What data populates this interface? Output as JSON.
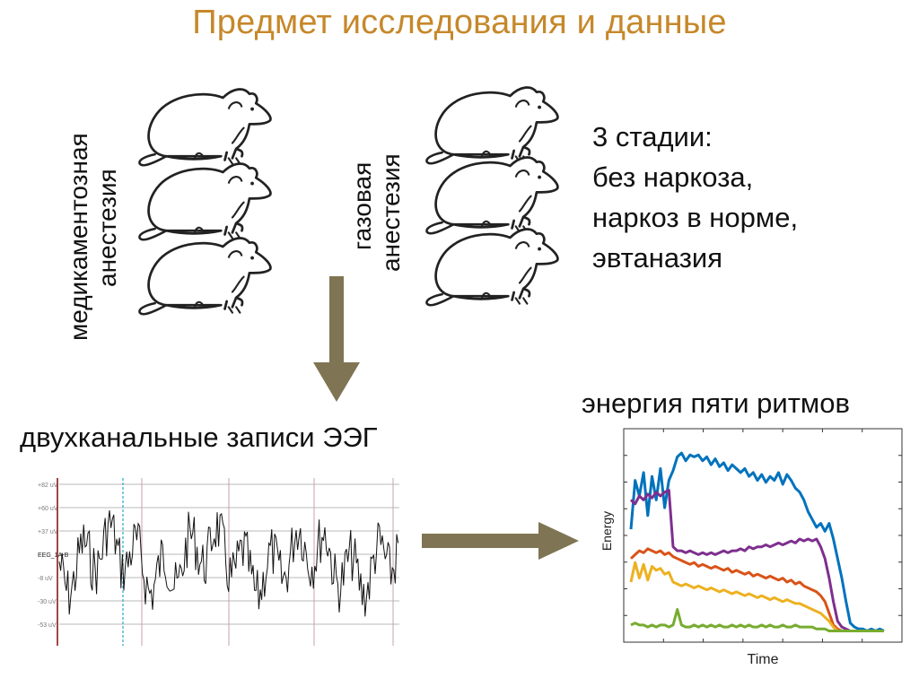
{
  "slide": {
    "title": "Предмет исследования и данные",
    "group_drug": {
      "line1": "медикаментозная",
      "line2": "анестезия"
    },
    "group_gas": {
      "line1": "газовая",
      "line2": "анестезия"
    },
    "stages": {
      "line1": "3 стадии:",
      "line2": "без наркоза,",
      "line3": "наркоз в норме,",
      "line4": "эвтаназия"
    },
    "eeg_label": "двухканальные записи ЭЭГ",
    "energy_label": "энергия пяти ритмов",
    "arrow_color": "#7f7453",
    "title_color": "#c6882a"
  },
  "eeg": {
    "channel": "EEG_1A-B",
    "y_ticks": [
      "+82 uV",
      "+60 uV",
      "+37 uV",
      "-8 uV",
      "-30 uV",
      "-53 uV"
    ]
  },
  "chart_data": {
    "type": "line",
    "title": "",
    "xlabel": "Time",
    "ylabel": "Energy",
    "legend": "none",
    "colors": [
      "#0072bd",
      "#7e2f8e",
      "#d95319",
      "#edb120",
      "#77ac30"
    ],
    "x": [
      0,
      1,
      2,
      3,
      4,
      5,
      6,
      7,
      8,
      9,
      10,
      11,
      12,
      13,
      14,
      15,
      16,
      17,
      18,
      19,
      20,
      21,
      22,
      23,
      24,
      25,
      26,
      27,
      28,
      29,
      30,
      31,
      32,
      33,
      34,
      35,
      36,
      37,
      38,
      39,
      40,
      41,
      42,
      43,
      44,
      45,
      46,
      47,
      48,
      49,
      50,
      51,
      52,
      53,
      54,
      55,
      56,
      57,
      58,
      59,
      60
    ],
    "series": [
      {
        "values": [
          0.55,
          0.8,
          0.72,
          0.84,
          0.62,
          0.82,
          0.7,
          0.86,
          0.66,
          0.8,
          0.85,
          0.92,
          0.94,
          0.9,
          0.93,
          0.92,
          0.93,
          0.9,
          0.92,
          0.88,
          0.91,
          0.87,
          0.89,
          0.85,
          0.88,
          0.86,
          0.84,
          0.86,
          0.82,
          0.84,
          0.8,
          0.83,
          0.79,
          0.82,
          0.8,
          0.84,
          0.78,
          0.83,
          0.8,
          0.76,
          0.74,
          0.7,
          0.64,
          0.6,
          0.56,
          0.58,
          0.54,
          0.58,
          0.5,
          0.4,
          0.3,
          0.18,
          0.07,
          0.05,
          0.04,
          0.04,
          0.03,
          0.04,
          0.03,
          0.04,
          0.03
        ]
      },
      {
        "values": [
          0.7,
          0.68,
          0.72,
          0.7,
          0.73,
          0.71,
          0.74,
          0.72,
          0.74,
          0.75,
          0.46,
          0.44,
          0.44,
          0.43,
          0.44,
          0.43,
          0.42,
          0.43,
          0.42,
          0.43,
          0.42,
          0.43,
          0.44,
          0.43,
          0.44,
          0.44,
          0.45,
          0.44,
          0.46,
          0.45,
          0.46,
          0.46,
          0.47,
          0.46,
          0.47,
          0.48,
          0.47,
          0.48,
          0.49,
          0.48,
          0.5,
          0.49,
          0.5,
          0.49,
          0.5,
          0.46,
          0.4,
          0.3,
          0.18,
          0.08,
          0.05,
          0.04,
          0.03,
          0.03,
          0.03,
          0.03,
          0.03,
          0.03,
          0.03,
          0.03,
          0.03
        ]
      },
      {
        "values": [
          0.4,
          0.42,
          0.44,
          0.43,
          0.45,
          0.44,
          0.43,
          0.44,
          0.42,
          0.43,
          0.41,
          0.4,
          0.39,
          0.38,
          0.37,
          0.38,
          0.36,
          0.37,
          0.36,
          0.35,
          0.36,
          0.35,
          0.34,
          0.35,
          0.33,
          0.34,
          0.33,
          0.32,
          0.33,
          0.31,
          0.32,
          0.31,
          0.3,
          0.31,
          0.3,
          0.29,
          0.3,
          0.28,
          0.29,
          0.27,
          0.28,
          0.26,
          0.25,
          0.24,
          0.23,
          0.21,
          0.18,
          0.12,
          0.06,
          0.04,
          0.03,
          0.03,
          0.03,
          0.03,
          0.03,
          0.03,
          0.03,
          0.03,
          0.03,
          0.03,
          0.03
        ]
      },
      {
        "values": [
          0.28,
          0.38,
          0.3,
          0.37,
          0.29,
          0.36,
          0.34,
          0.35,
          0.32,
          0.33,
          0.28,
          0.27,
          0.26,
          0.27,
          0.26,
          0.25,
          0.26,
          0.25,
          0.24,
          0.25,
          0.24,
          0.23,
          0.24,
          0.23,
          0.22,
          0.23,
          0.22,
          0.21,
          0.22,
          0.21,
          0.2,
          0.21,
          0.2,
          0.19,
          0.2,
          0.19,
          0.18,
          0.19,
          0.18,
          0.17,
          0.17,
          0.16,
          0.15,
          0.14,
          0.13,
          0.12,
          0.1,
          0.08,
          0.05,
          0.03,
          0.03,
          0.03,
          0.03,
          0.03,
          0.03,
          0.03,
          0.03,
          0.03,
          0.03,
          0.03,
          0.03
        ]
      },
      {
        "values": [
          0.06,
          0.07,
          0.06,
          0.06,
          0.05,
          0.06,
          0.05,
          0.06,
          0.06,
          0.05,
          0.06,
          0.14,
          0.06,
          0.05,
          0.05,
          0.06,
          0.05,
          0.06,
          0.05,
          0.06,
          0.05,
          0.06,
          0.05,
          0.05,
          0.06,
          0.05,
          0.06,
          0.05,
          0.06,
          0.05,
          0.05,
          0.06,
          0.05,
          0.06,
          0.05,
          0.05,
          0.06,
          0.05,
          0.05,
          0.06,
          0.05,
          0.05,
          0.05,
          0.05,
          0.04,
          0.04,
          0.04,
          0.03,
          0.03,
          0.03,
          0.03,
          0.03,
          0.03,
          0.03,
          0.03,
          0.03,
          0.03,
          0.03,
          0.03,
          0.03,
          0.03
        ]
      }
    ],
    "xlim": [
      0,
      60
    ],
    "ylim": [
      0,
      1
    ],
    "grid": false
  }
}
